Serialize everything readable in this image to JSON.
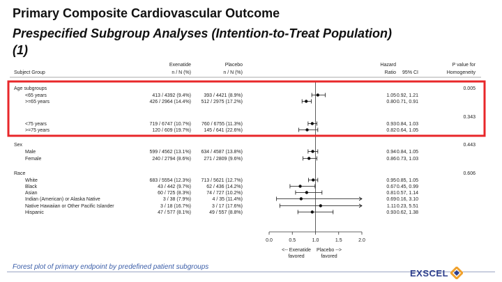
{
  "slide": {
    "title_line1": "Primary Composite Cardiovascular Outcome",
    "title_line2": "Prespecified Subgroup Analyses (Intention-to-Treat Population)",
    "title_line3": "(1)",
    "caption": "Forest plot of primary endpoint by predefined patient subgroups",
    "logo_text": "EXSCEL",
    "highlight_color": "#e8272a"
  },
  "chart_data": {
    "type": "forest",
    "headers": {
      "subject_group": "Subject Group",
      "exenatide": [
        "Exenatide",
        "n / N (%)"
      ],
      "placebo": [
        "Placebo",
        "n / N (%)"
      ],
      "hazard_ratio": [
        "Hazard",
        "Ratio"
      ],
      "ci": "95% CI",
      "p_value": [
        "P value for",
        "Homogeneity"
      ]
    },
    "rows": [
      {
        "label": "Age subgroups",
        "kind": "group",
        "p": "0.005"
      },
      {
        "label": "<65 years",
        "kind": "item",
        "exenatide": "413 / 4392 (9.4%)",
        "placebo": "393 / 4421 (8.9%)",
        "hr_text": "1.05",
        "ci_text": "0.92, 1.21",
        "hr": 1.05,
        "lo": 0.92,
        "hi": 1.21
      },
      {
        "label": ">=65 years",
        "kind": "item",
        "exenatide": "426 / 2964 (14.4%)",
        "placebo": "512 / 2975 (17.2%)",
        "hr_text": "0.80",
        "ci_text": "0.71, 0.91",
        "hr": 0.8,
        "lo": 0.71,
        "hi": 0.91
      },
      {
        "label": "",
        "kind": "spacer",
        "p": "0.343"
      },
      {
        "label": "<75 years",
        "kind": "item",
        "exenatide": "719 / 6747 (10.7%)",
        "placebo": "760 / 6755 (11.3%)",
        "hr_text": "0.93",
        "ci_text": "0.84, 1.03",
        "hr": 0.93,
        "lo": 0.84,
        "hi": 1.03
      },
      {
        "label": ">=75 years",
        "kind": "item",
        "exenatide": "120 / 609 (19.7%)",
        "placebo": "145 / 641 (22.6%)",
        "hr_text": "0.82",
        "ci_text": "0.64, 1.05",
        "hr": 0.82,
        "lo": 0.64,
        "hi": 1.05
      },
      {
        "label": "Sex",
        "kind": "group",
        "p": "0.443"
      },
      {
        "label": "Male",
        "kind": "item",
        "exenatide": "599 / 4562 (13.1%)",
        "placebo": "634 / 4587 (13.8%)",
        "hr_text": "0.94",
        "ci_text": "0.84, 1.05",
        "hr": 0.94,
        "lo": 0.84,
        "hi": 1.05
      },
      {
        "label": "Female",
        "kind": "item",
        "exenatide": "240 / 2794 (8.6%)",
        "placebo": "271 / 2809 (9.6%)",
        "hr_text": "0.86",
        "ci_text": "0.73, 1.03",
        "hr": 0.86,
        "lo": 0.73,
        "hi": 1.03
      },
      {
        "label": "Race",
        "kind": "group",
        "p": "0.606"
      },
      {
        "label": "White",
        "kind": "item",
        "exenatide": "683 / 5554 (12.3%)",
        "placebo": "713 / 5621 (12.7%)",
        "hr_text": "0.95",
        "ci_text": "0.85, 1.05",
        "hr": 0.95,
        "lo": 0.85,
        "hi": 1.05
      },
      {
        "label": "Black",
        "kind": "item",
        "exenatide": "43 / 442 (9.7%)",
        "placebo": "62 / 436 (14.2%)",
        "hr_text": "0.67",
        "ci_text": "0.45, 0.99",
        "hr": 0.67,
        "lo": 0.45,
        "hi": 0.99
      },
      {
        "label": "Asian",
        "kind": "item",
        "exenatide": "60 / 725 (8.3%)",
        "placebo": "74 / 727 (10.2%)",
        "hr_text": "0.81",
        "ci_text": "0.57, 1.14",
        "hr": 0.81,
        "lo": 0.57,
        "hi": 1.14
      },
      {
        "label": "Indian (American) or Alaska Native",
        "kind": "item",
        "exenatide": "3 / 38 (7.9%)",
        "placebo": "4 / 35 (11.4%)",
        "hr_text": "0.69",
        "ci_text": "0.16, 3.10",
        "hr": 0.69,
        "lo": 0.16,
        "hi": 3.1
      },
      {
        "label": "Native Hawaiian or Other Pacific Islander",
        "kind": "item",
        "exenatide": "3 / 18 (16.7%)",
        "placebo": "3 / 17 (17.6%)",
        "hr_text": "1.11",
        "ci_text": "0.23, 5.51",
        "hr": 1.11,
        "lo": 0.23,
        "hi": 5.51
      },
      {
        "label": "Hispanic",
        "kind": "item",
        "exenatide": "47 / 577 (8.1%)",
        "placebo": "49 / 557 (8.8%)",
        "hr_text": "0.93",
        "ci_text": "0.62, 1.38",
        "hr": 0.93,
        "lo": 0.62,
        "hi": 1.38
      }
    ],
    "x_axis": {
      "range": [
        0.0,
        2.0
      ],
      "ticks": [
        "0.0",
        "0.5",
        "1.0",
        "1.5",
        "2.0"
      ],
      "reference": 1.0,
      "left_label": [
        "<-- Exenatide",
        "favored"
      ],
      "right_label": [
        "Placebo -->",
        "favored"
      ]
    }
  }
}
